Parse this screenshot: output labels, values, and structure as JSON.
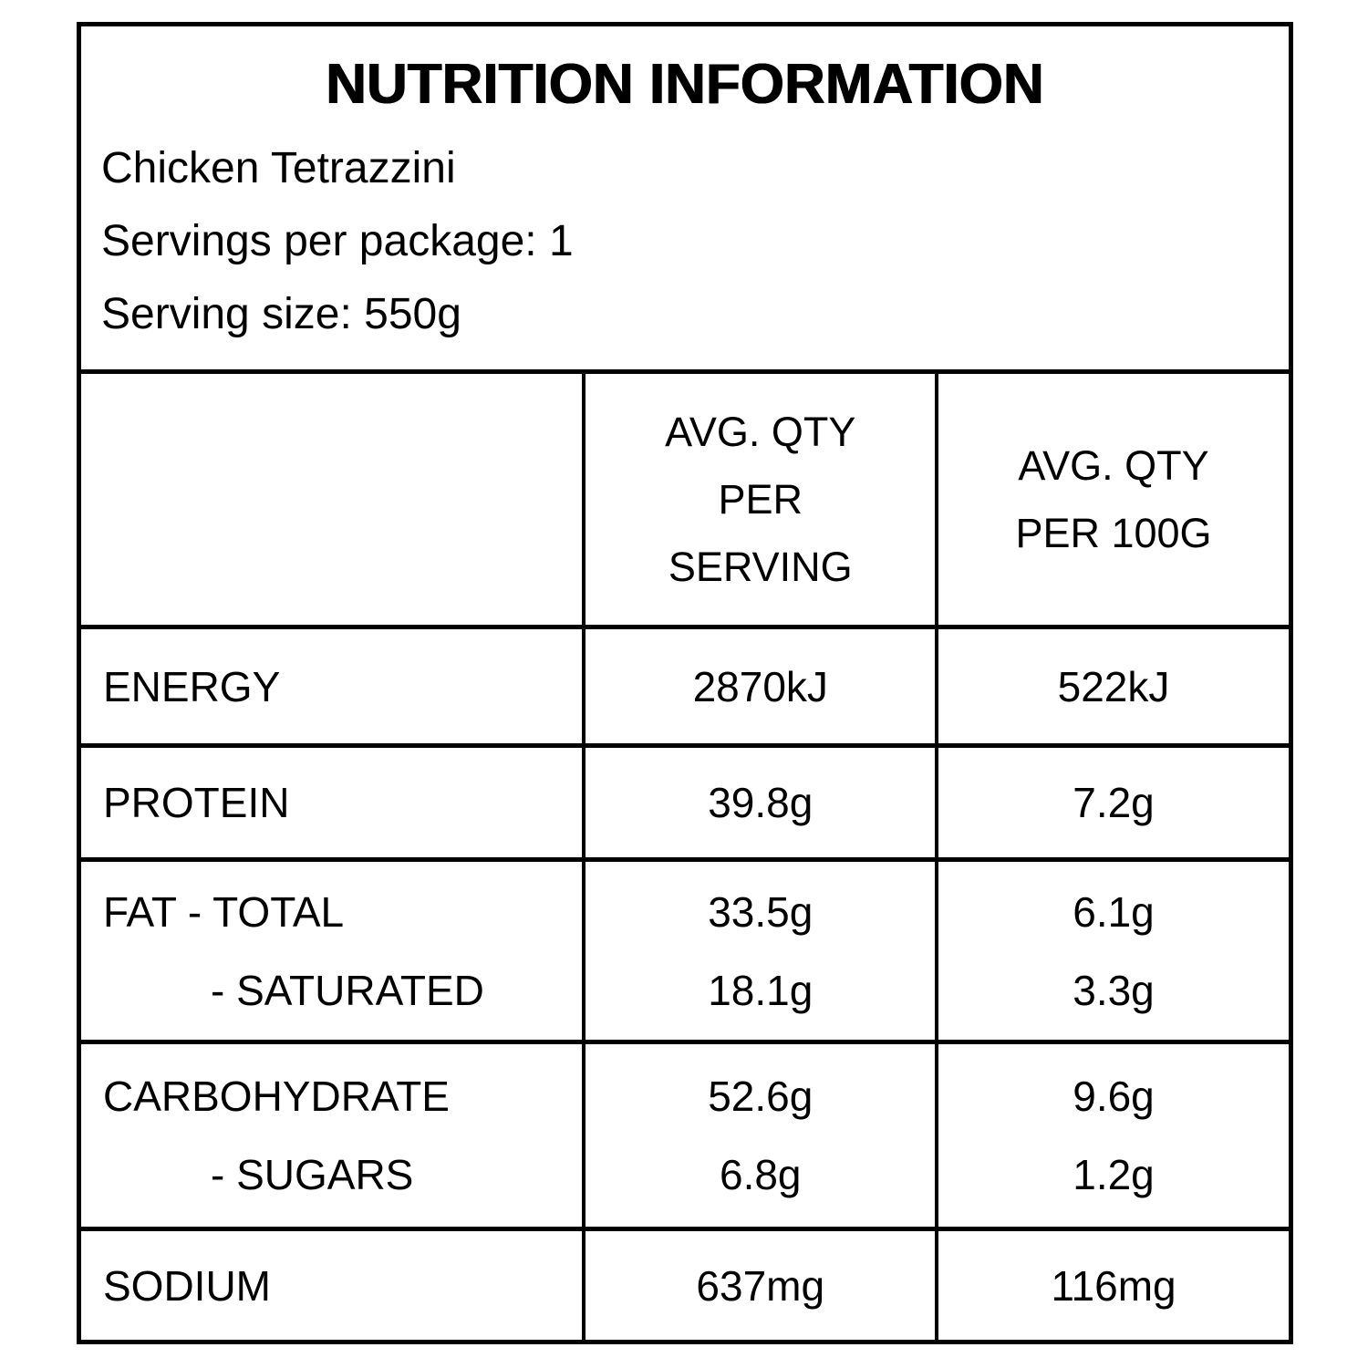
{
  "colors": {
    "background": "#ffffff",
    "border": "#000000",
    "text": "#000000"
  },
  "header": {
    "title": "NUTRITION INFORMATION",
    "product_name": "Chicken Tetrazzini",
    "servings_per_package": "Servings per package: 1",
    "serving_size": "Serving size: 550g"
  },
  "table": {
    "column_headers": {
      "nutrient": "",
      "per_serving_lines": [
        "AVG. QTY",
        "PER",
        "SERVING"
      ],
      "per_100g_lines": [
        "AVG. QTY",
        "PER 100G"
      ]
    },
    "rows": [
      {
        "nutrient": "ENERGY",
        "per_serving": "2870kJ",
        "per_100g": "522kJ"
      },
      {
        "nutrient": "PROTEIN",
        "per_serving": "39.8g",
        "per_100g": "7.2g"
      },
      {
        "nutrient": "FAT - TOTAL",
        "per_serving": "33.5g",
        "per_100g": "6.1g",
        "sub_nutrient": "- SATURATED",
        "sub_per_serving": "18.1g",
        "sub_per_100g": "3.3g"
      },
      {
        "nutrient": "CARBOHYDRATE",
        "per_serving": "52.6g",
        "per_100g": "9.6g",
        "sub_nutrient": "- SUGARS",
        "sub_per_serving": "6.8g",
        "sub_per_100g": "1.2g"
      },
      {
        "nutrient": "SODIUM",
        "per_serving": "637mg",
        "per_100g": "116mg"
      }
    ]
  }
}
